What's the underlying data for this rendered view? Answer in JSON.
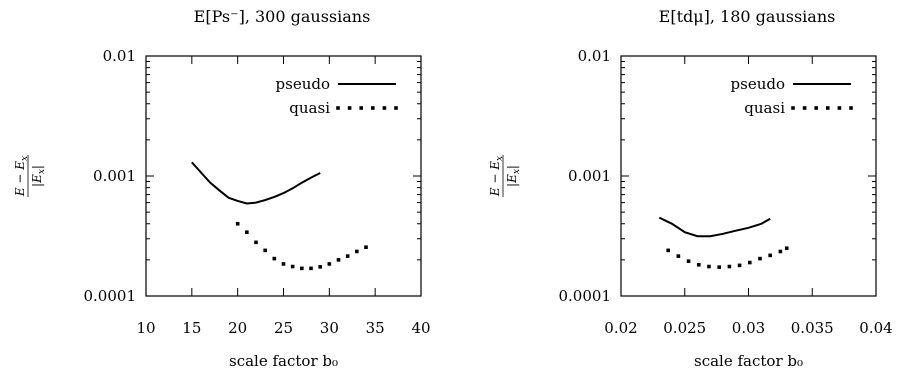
{
  "chart_data": [
    {
      "type": "line",
      "title": "E[Ps⁻], 300 gaussians",
      "xlabel": "scale factor b₀",
      "ylabel_num": "E − E",
      "ylabel_num_sub": "x",
      "ylabel_den": "|E",
      "ylabel_den_sub": "x",
      "ylabel_den_end": "|",
      "yscale": "log",
      "xlim": [
        10,
        40
      ],
      "ylim": [
        0.0001,
        0.01
      ],
      "xticks": [
        "10",
        "15",
        "20",
        "25",
        "30",
        "35",
        "40"
      ],
      "yticks": [
        "0.0001",
        "0.001",
        "0.01"
      ],
      "legend_position": "top-right",
      "series": [
        {
          "name": "pseudo",
          "style": "solid",
          "x": [
            15,
            16,
            17,
            18,
            19,
            20,
            21,
            22,
            23,
            24,
            25,
            26,
            27,
            28,
            29
          ],
          "y": [
            0.0013,
            0.00107,
            0.00088,
            0.00076,
            0.00066,
            0.00062,
            0.00059,
            0.0006,
            0.00063,
            0.00067,
            0.00072,
            0.00079,
            0.00088,
            0.00097,
            0.00106
          ]
        },
        {
          "name": "quasi",
          "style": "dotted",
          "x": [
            20,
            21,
            22,
            23,
            24,
            25,
            26,
            27,
            28,
            29,
            30,
            31,
            32,
            33,
            34
          ],
          "y": [
            0.0004,
            0.00034,
            0.00028,
            0.00024,
            0.000205,
            0.000185,
            0.000176,
            0.00017,
            0.00017,
            0.000175,
            0.000185,
            0.0002,
            0.000215,
            0.000235,
            0.000255
          ]
        }
      ]
    },
    {
      "type": "line",
      "title": "E[tdμ], 180 gaussians",
      "xlabel": "scale factor b₀",
      "ylabel_num": "E − E",
      "ylabel_num_sub": "x",
      "ylabel_den": "|E",
      "ylabel_den_sub": "x",
      "ylabel_den_end": "|",
      "yscale": "log",
      "xlim": [
        0.02,
        0.04
      ],
      "ylim": [
        0.0001,
        0.01
      ],
      "xticks": [
        "0.02",
        "0.025",
        "0.03",
        "0.035",
        "0.04"
      ],
      "yticks": [
        "0.0001",
        "0.001",
        "0.01"
      ],
      "legend_position": "top-right",
      "series": [
        {
          "name": "pseudo",
          "style": "solid",
          "x": [
            0.023,
            0.024,
            0.025,
            0.026,
            0.027,
            0.028,
            0.029,
            0.03,
            0.031,
            0.0317
          ],
          "y": [
            0.00045,
            0.0004,
            0.00034,
            0.000315,
            0.000315,
            0.00033,
            0.00035,
            0.00037,
            0.0004,
            0.00044
          ]
        },
        {
          "name": "quasi",
          "style": "dotted",
          "x": [
            0.0237,
            0.0245,
            0.0253,
            0.0261,
            0.0269,
            0.0277,
            0.0285,
            0.0293,
            0.0301,
            0.0309,
            0.0317,
            0.0325,
            0.033
          ],
          "y": [
            0.00024,
            0.000215,
            0.000195,
            0.000182,
            0.000176,
            0.000174,
            0.000176,
            0.00018,
            0.00019,
            0.000205,
            0.000218,
            0.000235,
            0.00025
          ]
        }
      ]
    }
  ]
}
